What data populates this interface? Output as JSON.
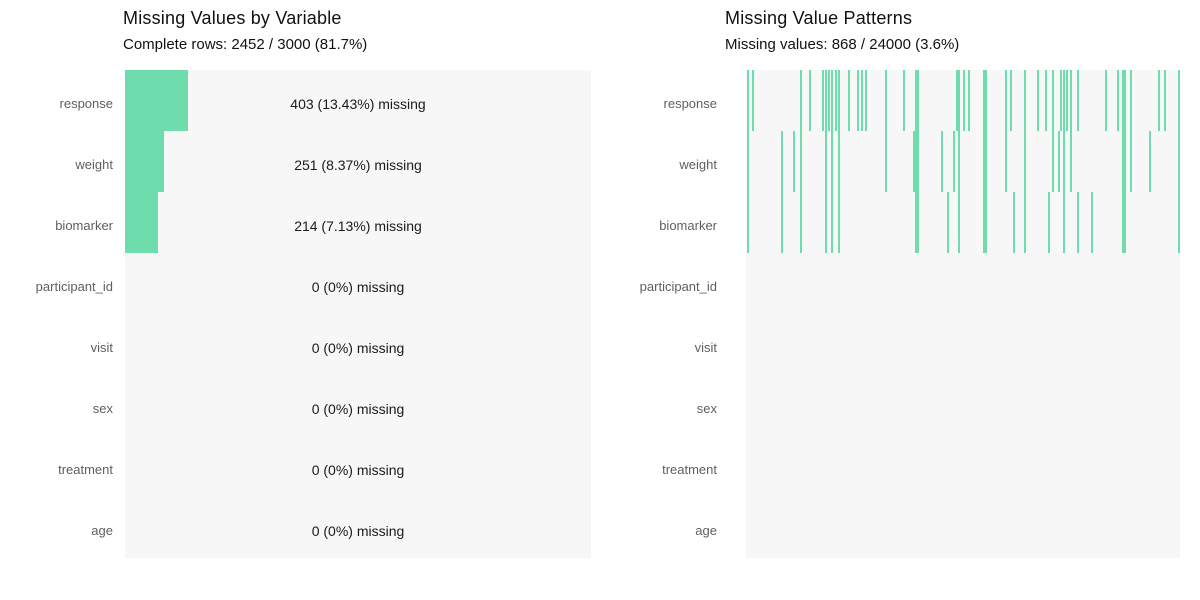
{
  "colors": {
    "accent_green": "#6edcad",
    "plot_background": "#f7f7f7",
    "label_gray": "#5f5f5f",
    "text_black": "#1a1a1a"
  },
  "left_panel": {
    "title": "Missing Values by Variable",
    "subtitle": "Complete rows: 2452 / 3000 (81.7%)"
  },
  "right_panel": {
    "title": "Missing Value Patterns",
    "subtitle": "Missing values: 868 / 24000 (3.6%)"
  },
  "variables": [
    "response",
    "weight",
    "biomarker",
    "participant_id",
    "visit",
    "sex",
    "treatment",
    "age"
  ],
  "chart_data": [
    {
      "type": "bar",
      "orientation": "horizontal",
      "title": "Missing Values by Variable",
      "subtitle": "Complete rows: 2452 / 3000 (81.7%)",
      "categories": [
        "response",
        "weight",
        "biomarker",
        "participant_id",
        "visit",
        "sex",
        "treatment",
        "age"
      ],
      "missing_counts": [
        403,
        251,
        214,
        0,
        0,
        0,
        0,
        0
      ],
      "missing_pct": [
        13.43,
        8.37,
        7.13,
        0,
        0,
        0,
        0,
        0
      ],
      "bar_labels": [
        "403 (13.43%) missing",
        "251 (8.37%) missing",
        "214 (7.13%) missing",
        "0 (0%) missing",
        "0 (0%) missing",
        "0 (0%) missing",
        "0 (0%) missing",
        "0 (0%) missing"
      ],
      "xlim": [
        0,
        100
      ],
      "grid": false,
      "legend": "none"
    },
    {
      "type": "heatmap",
      "title": "Missing Value Patterns",
      "subtitle": "Missing values: 868 / 24000 (3.6%)",
      "rows": [
        "response",
        "weight",
        "biomarker",
        "participant_id",
        "visit",
        "sex",
        "treatment",
        "age"
      ],
      "total_cells": 24000,
      "total_missing": 868,
      "rows_with_missing": [
        "response",
        "weight",
        "biomarker"
      ],
      "row_codes": {
        "R": "response",
        "W": "weight",
        "B": "biomarker"
      },
      "missing_marks": [
        {
          "x": 0.002,
          "rows": "RWB"
        },
        {
          "x": 0.014,
          "rows": "R"
        },
        {
          "x": 0.081,
          "rows": "WB"
        },
        {
          "x": 0.108,
          "rows": "W"
        },
        {
          "x": 0.124,
          "rows": "RWB"
        },
        {
          "x": 0.145,
          "rows": "R"
        },
        {
          "x": 0.175,
          "rows": "R"
        },
        {
          "x": 0.182,
          "rows": "RWB"
        },
        {
          "x": 0.189,
          "rows": "R"
        },
        {
          "x": 0.196,
          "rows": "RWB"
        },
        {
          "x": 0.205,
          "rows": "R"
        },
        {
          "x": 0.212,
          "rows": "RWB"
        },
        {
          "x": 0.235,
          "rows": "R"
        },
        {
          "x": 0.256,
          "rows": "R"
        },
        {
          "x": 0.265,
          "rows": "R"
        },
        {
          "x": 0.274,
          "rows": "R"
        },
        {
          "x": 0.32,
          "rows": "RW"
        },
        {
          "x": 0.362,
          "rows": "R"
        },
        {
          "x": 0.385,
          "rows": "W"
        },
        {
          "x": 0.389,
          "rows": "RWB",
          "w": 4
        },
        {
          "x": 0.449,
          "rows": "W"
        },
        {
          "x": 0.463,
          "rows": "B"
        },
        {
          "x": 0.478,
          "rows": "W"
        },
        {
          "x": 0.484,
          "rows": "R"
        },
        {
          "x": 0.488,
          "rows": "RWB"
        },
        {
          "x": 0.5,
          "rows": "R"
        },
        {
          "x": 0.512,
          "rows": "R"
        },
        {
          "x": 0.546,
          "rows": "RWB",
          "w": 4
        },
        {
          "x": 0.597,
          "rows": "RW"
        },
        {
          "x": 0.608,
          "rows": "R"
        },
        {
          "x": 0.615,
          "rows": "B"
        },
        {
          "x": 0.64,
          "rows": "RWB"
        },
        {
          "x": 0.67,
          "rows": "R"
        },
        {
          "x": 0.689,
          "rows": "R"
        },
        {
          "x": 0.696,
          "rows": "B"
        },
        {
          "x": 0.705,
          "rows": "RW"
        },
        {
          "x": 0.719,
          "rows": "W"
        },
        {
          "x": 0.723,
          "rows": "R"
        },
        {
          "x": 0.73,
          "rows": "RWB"
        },
        {
          "x": 0.737,
          "rows": "R"
        },
        {
          "x": 0.746,
          "rows": "RW"
        },
        {
          "x": 0.762,
          "rows": "RB"
        },
        {
          "x": 0.795,
          "rows": "B"
        },
        {
          "x": 0.827,
          "rows": "R"
        },
        {
          "x": 0.855,
          "rows": "R"
        },
        {
          "x": 0.866,
          "rows": "RWB",
          "w": 4
        },
        {
          "x": 0.872,
          "rows": "R"
        },
        {
          "x": 0.885,
          "rows": "RW"
        },
        {
          "x": 0.928,
          "rows": "W"
        },
        {
          "x": 0.949,
          "rows": "R"
        },
        {
          "x": 0.963,
          "rows": "R"
        },
        {
          "x": 0.995,
          "rows": "RWB"
        }
      ]
    }
  ]
}
